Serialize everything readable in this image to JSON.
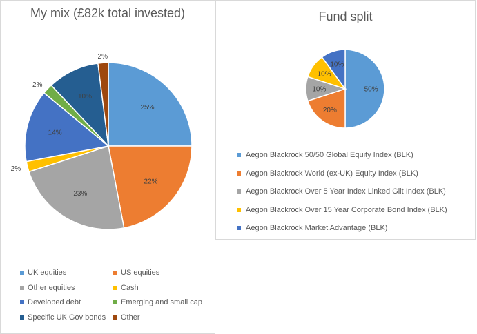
{
  "chart_data": [
    {
      "type": "pie",
      "title": "My mix (£82k total invested)",
      "legend_position": "bottom",
      "categories": [
        "UK equities",
        "US equities",
        "Other equities",
        "Cash",
        "Developed debt",
        "Emerging and small cap",
        "Specific UK Gov bonds",
        "Other"
      ],
      "values": [
        25,
        22,
        23,
        2,
        14,
        2,
        10,
        2
      ],
      "labels": [
        "25%",
        "22%",
        "23%",
        "2%",
        "14%",
        "2%",
        "10%",
        "2%"
      ],
      "colors": [
        "#5B9BD5",
        "#ED7D31",
        "#A5A5A5",
        "#FFC000",
        "#4472C4",
        "#70AD47",
        "#255E91",
        "#9E480E"
      ]
    },
    {
      "type": "pie",
      "title": "Fund split",
      "legend_position": "bottom",
      "categories": [
        "Aegon Blackrock 50/50 Global Equity Index (BLK)",
        "Aegon Blackrock World (ex-UK) Equity Index (BLK)",
        "Aegon Blackrock Over 5 Year Index Linked Gilt Index (BLK)",
        "Aegon Blackrock Over 15 Year Corporate Bond Index (BLK)",
        "Aegon Blackrock Market Advantage (BLK)"
      ],
      "values": [
        50,
        20,
        10,
        10,
        10
      ],
      "labels": [
        "50%",
        "20%",
        "10%",
        "10%",
        "10%"
      ],
      "colors": [
        "#5B9BD5",
        "#ED7D31",
        "#A5A5A5",
        "#FFC000",
        "#4472C4"
      ]
    }
  ]
}
